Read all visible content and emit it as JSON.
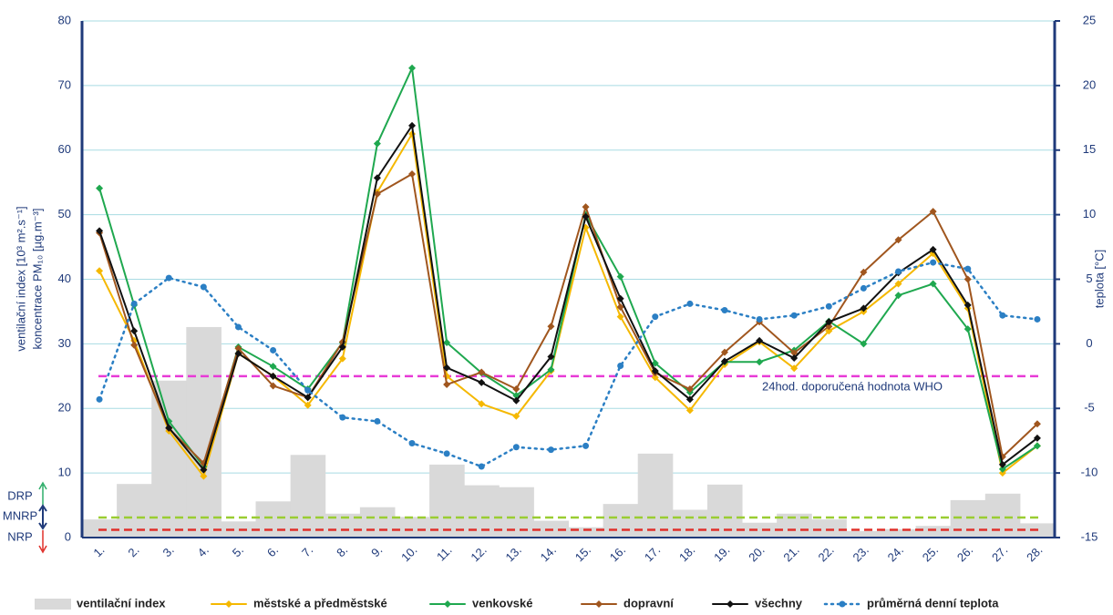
{
  "chart_data": {
    "type": "combo",
    "ylabel": [
      "ventilační index [10³ m².s⁻¹]",
      "koncentrace PM₁₀ [µg.m⁻³]"
    ],
    "y2label": "teplota [°C]",
    "categories": [
      "1.",
      "2.",
      "3.",
      "4.",
      "5.",
      "6.",
      "7.",
      "8.",
      "9.",
      "10.",
      "11.",
      "12.",
      "13.",
      "14.",
      "15.",
      "16.",
      "17.",
      "18.",
      "19.",
      "20.",
      "21.",
      "22.",
      "23.",
      "24.",
      "25.",
      "26.",
      "27.",
      "28."
    ],
    "ylim": [
      0,
      80
    ],
    "yticks": [
      0,
      10,
      20,
      30,
      40,
      50,
      60,
      70,
      80
    ],
    "y2lim": [
      -15,
      25
    ],
    "y2ticks": [
      -15,
      -10,
      -5,
      0,
      5,
      10,
      15,
      20,
      25
    ],
    "grid": true,
    "series": [
      {
        "name": "ventilační index",
        "type": "bar",
        "color": "#d9d9d9",
        "values": [
          2.8,
          8.3,
          24.3,
          32.6,
          2.5,
          5.6,
          12.8,
          3.7,
          4.7,
          3.2,
          11.3,
          8.1,
          7.8,
          2.6,
          1.6,
          5.2,
          13,
          4.3,
          8.2,
          2.3,
          3.7,
          2.8,
          1,
          1.3,
          1.8,
          5.8,
          6.8,
          2.2
        ]
      },
      {
        "name": "městské a předměstské",
        "type": "line",
        "color": "#f5b800",
        "values": [
          41.3,
          30.5,
          16.5,
          9.5,
          28.5,
          25,
          20.5,
          27.7,
          53.5,
          62.5,
          25,
          20.7,
          18.8,
          25.8,
          48,
          34.2,
          24.8,
          19.7,
          26.8,
          30.3,
          26.2,
          32,
          35,
          39.3,
          44,
          35.5,
          10,
          14.2
        ]
      },
      {
        "name": "venkovské",
        "type": "line",
        "color": "#1fa84f",
        "values": [
          54.1,
          36,
          18,
          11,
          29.5,
          26.5,
          23,
          30.2,
          61,
          72.7,
          30.2,
          25.5,
          22,
          26,
          50,
          40.4,
          27,
          22.5,
          27.2,
          27.2,
          29,
          33.5,
          30,
          37.5,
          39.3,
          32.3,
          10.6,
          14.2
        ]
      },
      {
        "name": "dopravní",
        "type": "line",
        "color": "#a0561e",
        "values": [
          47.2,
          29.8,
          16.9,
          11.5,
          29.3,
          23.5,
          21.7,
          30.3,
          53.2,
          56.3,
          23.7,
          25.6,
          23,
          32.7,
          51.2,
          35.7,
          25.5,
          23,
          28.7,
          33.4,
          28.6,
          32.7,
          41.1,
          46.1,
          50.5,
          40,
          12.5,
          17.6
        ]
      },
      {
        "name": "všechny",
        "type": "line",
        "color": "#111111",
        "values": [
          47.5,
          32,
          17,
          10.5,
          28.5,
          25,
          21.7,
          29.5,
          55.7,
          63.8,
          26.3,
          24,
          21.2,
          28,
          49.7,
          37,
          25.8,
          21.4,
          27.3,
          30.5,
          27.8,
          33.4,
          35.5,
          41,
          44.6,
          36,
          11.3,
          15.4
        ]
      },
      {
        "name": "průměrná denní teplota",
        "type": "line",
        "style": "dotted",
        "axis": "y2",
        "color": "#2b7fc4",
        "values": [
          -4.3,
          3.1,
          5.1,
          4.4,
          1.3,
          -0.5,
          -3.6,
          -5.7,
          -6.0,
          -7.7,
          -8.5,
          -9.5,
          -8.0,
          -8.2,
          -7.9,
          -1.7,
          2.1,
          3.1,
          2.6,
          1.9,
          2.2,
          2.9,
          4.3,
          5.6,
          6.3,
          5.8,
          2.2,
          1.9
        ]
      }
    ],
    "reference_lines": [
      {
        "value": 25,
        "color": "#e83ad6",
        "label": "24hod. doporučená hodnota WHO"
      },
      {
        "value": 3.1,
        "color": "#9acd32"
      },
      {
        "value": 1.2,
        "color": "#e0302a"
      }
    ],
    "side_labels": [
      {
        "text": "DRP",
        "color": "#2fae6a"
      },
      {
        "text": "MNRP",
        "color": "#1f3a7a"
      },
      {
        "text": "NRP",
        "color": "#e0302a"
      }
    ]
  }
}
